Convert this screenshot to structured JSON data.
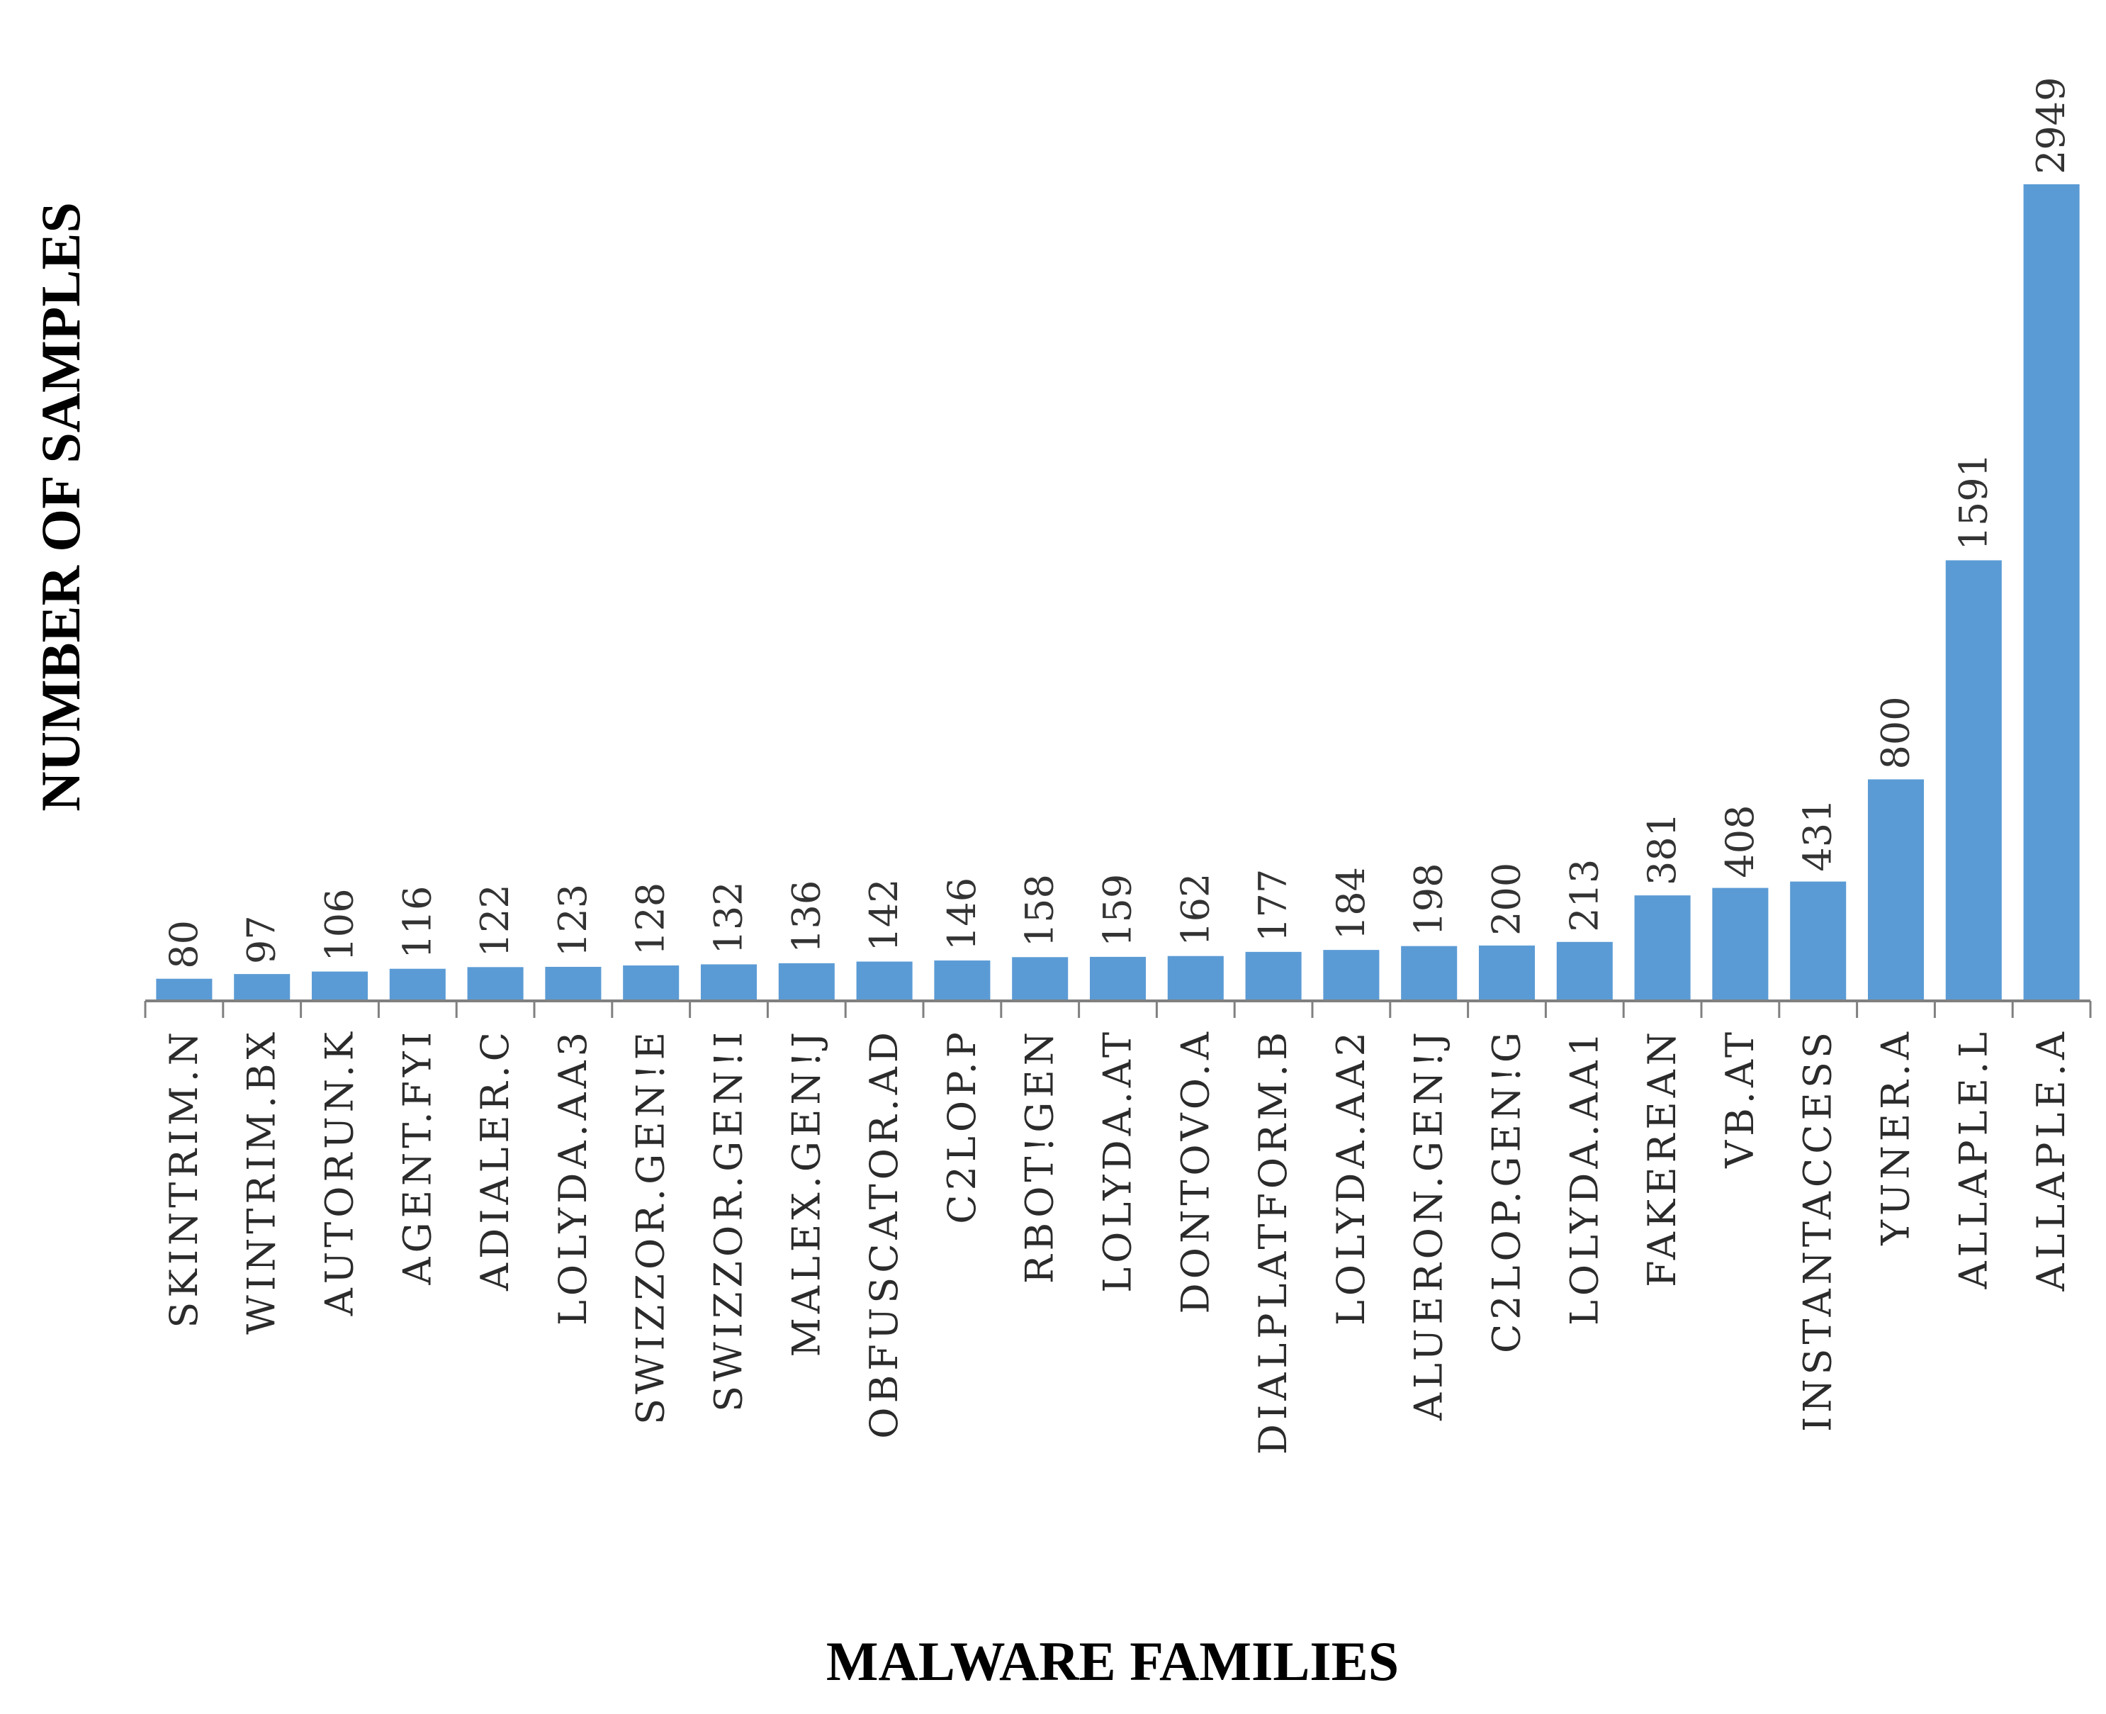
{
  "chart_data": {
    "type": "bar",
    "title": "",
    "xlabel": "MALWARE FAMILIES",
    "ylabel": "NUMBER OF SAMPLES",
    "ylim": [
      0,
      3000
    ],
    "grid": false,
    "legend": "none",
    "bar_color": "#5b9bd5",
    "categories": [
      "SKINTRIM.N",
      "WINTRIM.BX",
      "AUTORUN.K",
      "AGENT.FYI",
      "ADIALER.C",
      "LOLYDA.AA3",
      "SWIZZOR.GEN!E",
      "SWIZZOR.GEN!I",
      "MALEX.GEN!J",
      "OBFUSCATOR.AD",
      "C2LOP.P",
      "RBOT!GEN",
      "LOLYDA.AT",
      "DONTOVO.A",
      "DIALPLATFORM.B",
      "LOLYDA.AA2",
      "ALUERON.GEN!J",
      "C2LOP.GEN!G",
      "LOLYDA.AA1",
      "FAKEREAN",
      "VB.AT",
      "INSTANTACCESS",
      "YUNER.A",
      "ALLAPLE.L",
      "ALLAPLE.A"
    ],
    "values": [
      80,
      97,
      106,
      116,
      122,
      123,
      128,
      132,
      136,
      142,
      146,
      158,
      159,
      162,
      177,
      184,
      198,
      200,
      213,
      381,
      408,
      431,
      800,
      1591,
      2949
    ]
  }
}
